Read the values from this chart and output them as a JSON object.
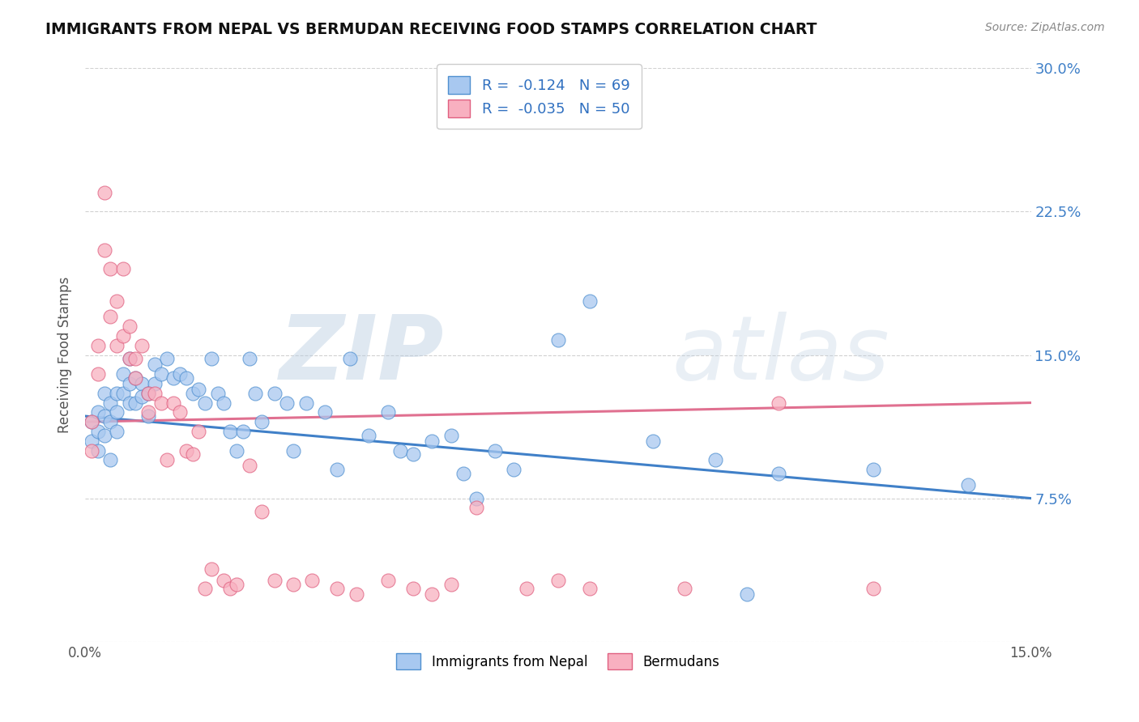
{
  "title": "IMMIGRANTS FROM NEPAL VS BERMUDAN RECEIVING FOOD STAMPS CORRELATION CHART",
  "source": "Source: ZipAtlas.com",
  "ylabel": "Receiving Food Stamps",
  "xlim": [
    0.0,
    0.15
  ],
  "ylim": [
    0.0,
    0.3
  ],
  "xticks": [
    0.0,
    0.03,
    0.06,
    0.09,
    0.12,
    0.15
  ],
  "yticks": [
    0.0,
    0.075,
    0.15,
    0.225,
    0.3
  ],
  "ytick_labels_right": [
    "",
    "7.5%",
    "15.0%",
    "22.5%",
    "30.0%"
  ],
  "nepal_R": -0.124,
  "nepal_N": 69,
  "bermuda_R": -0.035,
  "bermuda_N": 50,
  "nepal_color": "#A8C8F0",
  "bermuda_color": "#F8B0C0",
  "nepal_edge_color": "#5090D0",
  "bermuda_edge_color": "#E06080",
  "nepal_line_color": "#4080C8",
  "bermuda_line_color": "#E07090",
  "watermark_zip": "ZIP",
  "watermark_atlas": "atlas",
  "nepal_scatter_x": [
    0.001,
    0.001,
    0.002,
    0.002,
    0.002,
    0.003,
    0.003,
    0.003,
    0.004,
    0.004,
    0.004,
    0.005,
    0.005,
    0.005,
    0.006,
    0.006,
    0.007,
    0.007,
    0.007,
    0.008,
    0.008,
    0.009,
    0.009,
    0.01,
    0.01,
    0.011,
    0.011,
    0.012,
    0.013,
    0.014,
    0.015,
    0.016,
    0.017,
    0.018,
    0.019,
    0.02,
    0.021,
    0.022,
    0.023,
    0.024,
    0.025,
    0.026,
    0.027,
    0.028,
    0.03,
    0.032,
    0.033,
    0.035,
    0.038,
    0.04,
    0.042,
    0.045,
    0.048,
    0.05,
    0.052,
    0.055,
    0.058,
    0.06,
    0.062,
    0.065,
    0.068,
    0.075,
    0.08,
    0.09,
    0.1,
    0.105,
    0.11,
    0.125,
    0.14
  ],
  "nepal_scatter_y": [
    0.115,
    0.105,
    0.12,
    0.11,
    0.1,
    0.13,
    0.118,
    0.108,
    0.125,
    0.115,
    0.095,
    0.13,
    0.12,
    0.11,
    0.14,
    0.13,
    0.148,
    0.135,
    0.125,
    0.138,
    0.125,
    0.135,
    0.128,
    0.13,
    0.118,
    0.135,
    0.145,
    0.14,
    0.148,
    0.138,
    0.14,
    0.138,
    0.13,
    0.132,
    0.125,
    0.148,
    0.13,
    0.125,
    0.11,
    0.1,
    0.11,
    0.148,
    0.13,
    0.115,
    0.13,
    0.125,
    0.1,
    0.125,
    0.12,
    0.09,
    0.148,
    0.108,
    0.12,
    0.1,
    0.098,
    0.105,
    0.108,
    0.088,
    0.075,
    0.1,
    0.09,
    0.158,
    0.178,
    0.105,
    0.095,
    0.025,
    0.088,
    0.09,
    0.082
  ],
  "bermuda_scatter_x": [
    0.001,
    0.001,
    0.002,
    0.002,
    0.003,
    0.003,
    0.004,
    0.004,
    0.005,
    0.005,
    0.006,
    0.006,
    0.007,
    0.007,
    0.008,
    0.008,
    0.009,
    0.01,
    0.01,
    0.011,
    0.012,
    0.013,
    0.014,
    0.015,
    0.016,
    0.017,
    0.018,
    0.019,
    0.02,
    0.022,
    0.023,
    0.024,
    0.026,
    0.028,
    0.03,
    0.033,
    0.036,
    0.04,
    0.043,
    0.048,
    0.052,
    0.055,
    0.058,
    0.062,
    0.07,
    0.075,
    0.08,
    0.095,
    0.11,
    0.125
  ],
  "bermuda_scatter_y": [
    0.115,
    0.1,
    0.155,
    0.14,
    0.235,
    0.205,
    0.195,
    0.17,
    0.178,
    0.155,
    0.195,
    0.16,
    0.165,
    0.148,
    0.148,
    0.138,
    0.155,
    0.13,
    0.12,
    0.13,
    0.125,
    0.095,
    0.125,
    0.12,
    0.1,
    0.098,
    0.11,
    0.028,
    0.038,
    0.032,
    0.028,
    0.03,
    0.092,
    0.068,
    0.032,
    0.03,
    0.032,
    0.028,
    0.025,
    0.032,
    0.028,
    0.025,
    0.03,
    0.07,
    0.028,
    0.032,
    0.028,
    0.028,
    0.125,
    0.028
  ]
}
